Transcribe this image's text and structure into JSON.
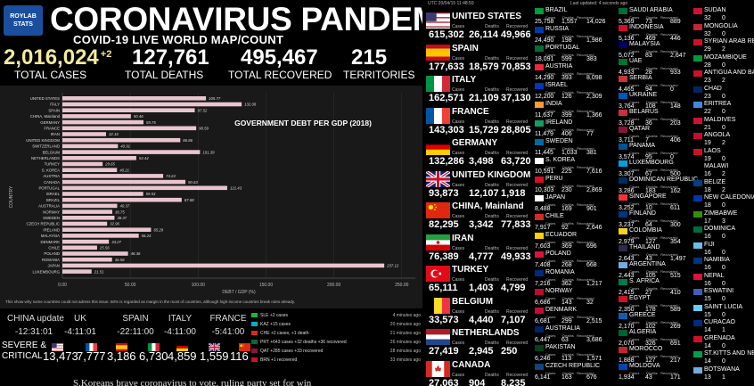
{
  "header": {
    "logo_text": "ROYLAB STATS",
    "title": "CORONAVIRUS PANDEMIC",
    "subtitle": "COVID-19 LIVE WORLD MAP/COUNT"
  },
  "stats": [
    {
      "value": "2,016,024",
      "delta": "+2",
      "label": "TOTAL CASES",
      "color": "#f3ea9c"
    },
    {
      "value": "127,761",
      "delta": "",
      "label": "TOTAL DEATHS",
      "color": "#ffffff"
    },
    {
      "value": "495,467",
      "delta": "",
      "label": "TOTAL RECOVERED",
      "color": "#ffffff"
    },
    {
      "value": "215",
      "delta": "",
      "label": "TERRITORIES",
      "color": "#ffffff"
    }
  ],
  "chart_data": {
    "type": "bar",
    "orientation": "horizontal",
    "title": "GOVERNMENT DEBT PER GDP (2018)",
    "xlabel": "DEBT / GDP (%)",
    "ylabel": "COUNTRY",
    "xlim": [
      0,
      260
    ],
    "xticks": [
      "0.00",
      "50.00",
      "100.00",
      "150.00",
      "200.00",
      "250.00"
    ],
    "xtick_values": [
      0,
      50,
      100,
      150,
      200,
      250
    ],
    "footnote": "This show why some countries could not adress this issue. 60% is regarded as margin in the most of countries, although high-income countries break rules already.",
    "bar_color": "#e9c6cf",
    "categories": [
      "UNITED STATES",
      "ITALY",
      "SPAIN",
      "CHINA, Mainland",
      "GERMANY",
      "FRANCE",
      "IRAN",
      "UNITED KINGDOM",
      "SWITZERLAND",
      "BELGIUM",
      "NETHERLANDS",
      "TURKEY",
      "S. KOREA",
      "AUSTRIA",
      "CANADA",
      "PORTUGAL",
      "ISRAEL",
      "BRAZIL",
      "AUSTRALIA",
      "NORWAY",
      "SWEDEN",
      "CZECH REPUBLIC",
      "IRELAND",
      "MALAYSIA",
      "DENMARK",
      "CHILE",
      "POLAND",
      "ROMANIA",
      "JAPAN",
      "LUXEMBOURG"
    ],
    "values": [
      105.77,
      132.08,
      97.52,
      50.46,
      59.75,
      98.59,
      32.16,
      86.86,
      40.91,
      101.39,
      54.44,
      29.65,
      40.21,
      74.24,
      90.63,
      121.43,
      59.53,
      87.88,
      40.37,
      36.75,
      38.37,
      32.96,
      65.29,
      56.24,
      34.27,
      25.56,
      48.36,
      36.58,
      237.12,
      21.51
    ],
    "value_labels": [
      "105.77",
      "132.08",
      "97.52",
      "50.46",
      "59.75",
      "98.59",
      "32.16",
      "86.86",
      "40.91",
      "101.39",
      "54.44",
      "29.65",
      "40.21",
      "74.24",
      "90.63",
      "121.43",
      "59.53",
      "87.88",
      "40.37",
      "36.75",
      "38.37",
      "32.96",
      "65.29",
      "56.24",
      "34.27",
      "25.56",
      "48.36",
      "36.58",
      "237.12",
      "21.51"
    ]
  },
  "updates": [
    {
      "country": "CHINA update",
      "time": "-12:31:01"
    },
    {
      "country": "UK",
      "time": "-4:11:01"
    },
    {
      "country": "SPAIN",
      "time": "-22:11:00"
    },
    {
      "country": "ITALY",
      "time": "-4:11:00"
    },
    {
      "country": "FRANCE",
      "time": "-5:41:00"
    }
  ],
  "log": [
    {
      "text": "SLE +2 cases",
      "ago": "4 minutes ago",
      "flag": "#1eb53a"
    },
    {
      "text": "KAZ +15 cases",
      "ago": "20 minutes ago",
      "flag": "#00afca"
    },
    {
      "text": "CHE +2 cases, +1 death",
      "ago": "21 minutes ago",
      "flag": "#d52b1e"
    },
    {
      "text": "PRT +643 cases +32 deaths +36 recovered",
      "ago": "26 minutes ago",
      "flag": "#046a38"
    },
    {
      "text": "QAT +285 cases +33 recovered",
      "ago": "28 minutes ago",
      "flag": "#8a1538"
    },
    {
      "text": "BRN +1 recovered",
      "ago": "33 minutes ago",
      "flag": "#ce1126"
    }
  ],
  "severe": {
    "label_line1": "SEVERE &",
    "label_line2": "CRITICAL",
    "values": [
      {
        "num": "13,473",
        "flag": "us"
      },
      {
        "num": "7,777",
        "flag": "fr"
      },
      {
        "num": "3,186",
        "flag": "es"
      },
      {
        "num": "6,730",
        "flag": "it"
      },
      {
        "num": "4,859",
        "flag": "de"
      },
      {
        "num": "1,559",
        "flag": "gb"
      },
      {
        "num": "116",
        "flag": "cn"
      }
    ]
  },
  "ticker": "S.Koreans brave coronavirus to vote, ruling party set for win",
  "middle": {
    "utc": "UTC 20/04/15 11:48:59",
    "labels": {
      "cases": "Cases",
      "deaths": "Deaths",
      "recovered": "Recovered"
    },
    "rows": [
      {
        "name": "UNITED STATES",
        "cases": "615,302",
        "deaths": "26,114",
        "recovered": "49,966",
        "flag": "us"
      },
      {
        "name": "SPAIN",
        "cases": "177,633",
        "deaths": "18,579",
        "recovered": "70,853",
        "flag": "es"
      },
      {
        "name": "ITALY",
        "cases": "162,571",
        "deaths": "21,109",
        "recovered": "37,130",
        "flag": "it"
      },
      {
        "name": "FRANCE",
        "cases": "143,303",
        "deaths": "15,729",
        "recovered": "28,805",
        "flag": "fr"
      },
      {
        "name": "GERMANY",
        "cases": "132,286",
        "deaths": "3,498",
        "recovered": "63,720",
        "flag": "de"
      },
      {
        "name": "UNITED KINGDOM",
        "cases": "93,873",
        "deaths": "12,107",
        "recovered": "1,918",
        "flag": "gb"
      },
      {
        "name": "CHINA, Mainland",
        "cases": "82,295",
        "deaths": "3,342",
        "recovered": "77,833",
        "flag": "cn"
      },
      {
        "name": "IRAN",
        "cases": "76,389",
        "deaths": "4,777",
        "recovered": "49,933",
        "flag": "ir"
      },
      {
        "name": "TURKEY",
        "cases": "65,111",
        "deaths": "1,403",
        "recovered": "4,799",
        "flag": "tr"
      },
      {
        "name": "BELGIUM",
        "cases": "33,573",
        "deaths": "4,440",
        "recovered": "7,107",
        "flag": "be"
      },
      {
        "name": "NETHERLANDS",
        "cases": "27,419",
        "deaths": "2,945",
        "recovered": "250",
        "flag": "nl"
      },
      {
        "name": "CANADA",
        "cases": "27,063",
        "deaths": "904",
        "recovered": "8,235",
        "flag": "ca"
      }
    ]
  },
  "right_list": {
    "last_updated": "Last updated: 4 seconds ago",
    "labels": {
      "cases": "Cases",
      "deaths": "Deaths",
      "recovered": "Recovered"
    },
    "col1": [
      {
        "name": "BRAZIL",
        "cases": "25,758",
        "deaths": "1,557",
        "recovered": "14,026",
        "flag": "#009c3b"
      },
      {
        "name": "RUSSIA",
        "cases": "24,490",
        "deaths": "198",
        "recovered": "1,986",
        "flag": "#0039a6"
      },
      {
        "name": "PORTUGAL",
        "cases": "18,091",
        "deaths": "599",
        "recovered": "383",
        "flag": "#046a38"
      },
      {
        "name": "AUSTRIA",
        "cases": "14,290",
        "deaths": "393",
        "recovered": "8,098",
        "flag": "#ed2939"
      },
      {
        "name": "ISRAEL",
        "cases": "12,200",
        "deaths": "126",
        "recovered": "2,309",
        "flag": "#0038b8"
      },
      {
        "name": "INDIA",
        "cases": "11,637",
        "deaths": "399",
        "recovered": "1,366",
        "flag": "#ff9933"
      },
      {
        "name": "IRELAND",
        "cases": "11,479",
        "deaths": "406",
        "recovered": "77",
        "flag": "#169b62"
      },
      {
        "name": "SWEDEN",
        "cases": "11,445",
        "deaths": "1,033",
        "recovered": "381",
        "flag": "#006aa7"
      },
      {
        "name": "S. KOREA",
        "cases": "10,591",
        "deaths": "225",
        "recovered": "7,616",
        "flag": "#ffffff"
      },
      {
        "name": "PERU",
        "cases": "10,303",
        "deaths": "230",
        "recovered": "2,869",
        "flag": "#d91023"
      },
      {
        "name": "JAPAN",
        "cases": "8,488",
        "deaths": "169",
        "recovered": "901",
        "flag": "#ffffff"
      },
      {
        "name": "CHILE",
        "cases": "7,917",
        "deaths": "92",
        "recovered": "2,646",
        "flag": "#d52b1e"
      },
      {
        "name": "ECUADOR",
        "cases": "7,603",
        "deaths": "369",
        "recovered": "696",
        "flag": "#ffd100"
      },
      {
        "name": "POLAND",
        "cases": "7,408",
        "deaths": "268",
        "recovered": "668",
        "flag": "#dc143c"
      },
      {
        "name": "ROMANIA",
        "cases": "7,216",
        "deaths": "362",
        "recovered": "1,217",
        "flag": "#002b7f"
      },
      {
        "name": "NORWAY",
        "cases": "6,686",
        "deaths": "143",
        "recovered": "32",
        "flag": "#ba0c2f"
      },
      {
        "name": "DENMARK",
        "cases": "6,681",
        "deaths": "299",
        "recovered": "2,515",
        "flag": "#c60c30"
      },
      {
        "name": "AUSTRALIA",
        "cases": "6,447",
        "deaths": "63",
        "recovered": "3,686",
        "flag": "#012169"
      },
      {
        "name": "PAKISTAN",
        "cases": "6,246",
        "deaths": "113",
        "recovered": "1,571",
        "flag": "#01411c"
      },
      {
        "name": "CZECH REPUBLIC",
        "cases": "6,141",
        "deaths": "163",
        "recovered": "676",
        "flag": "#11457e"
      }
    ],
    "col2": [
      {
        "name": "SAUDI ARABIA",
        "cases": "5,369",
        "deaths": "73",
        "recovered": "889",
        "flag": "#006c35"
      },
      {
        "name": "INDONESIA",
        "cases": "5,136",
        "deaths": "469",
        "recovered": "446",
        "flag": "#ce1126"
      },
      {
        "name": "MALAYSIA",
        "cases": "5,072",
        "deaths": "83",
        "recovered": "2,647",
        "flag": "#010066"
      },
      {
        "name": "UAE",
        "cases": "4,933",
        "deaths": "28",
        "recovered": "933",
        "flag": "#00732f"
      },
      {
        "name": "SERBIA",
        "cases": "4,465",
        "deaths": "94",
        "recovered": "0",
        "flag": "#c6363c"
      },
      {
        "name": "UKRAINE",
        "cases": "3,764",
        "deaths": "108",
        "recovered": "148",
        "flag": "#0057b7"
      },
      {
        "name": "BELARUS",
        "cases": "3,728",
        "deaths": "36",
        "recovered": "203",
        "flag": "#c8313e"
      },
      {
        "name": "QATAR",
        "cases": "3,711",
        "deaths": "7",
        "recovered": "406",
        "flag": "#8a1538"
      },
      {
        "name": "PANAMA",
        "cases": "3,574",
        "deaths": "95",
        "recovered": "0",
        "flag": "#005293"
      },
      {
        "name": "LUXEMBOURG",
        "cases": "3,307",
        "deaths": "67",
        "recovered": "500",
        "flag": "#00a1de"
      },
      {
        "name": "DOMINICAN REPUBLIC",
        "cases": "3,286",
        "deaths": "183",
        "recovered": "162",
        "flag": "#002d62"
      },
      {
        "name": "SINGAPORE",
        "cases": "3,252",
        "deaths": "10",
        "recovered": "611",
        "flag": "#ef3340"
      },
      {
        "name": "FINLAND",
        "cases": "3,237",
        "deaths": "64",
        "recovered": "300",
        "flag": "#003580"
      },
      {
        "name": "COLOMBIA",
        "cases": "2,979",
        "deaths": "127",
        "recovered": "354",
        "flag": "#fcd116"
      },
      {
        "name": "THAILAND",
        "cases": "2,643",
        "deaths": "43",
        "recovered": "1,497",
        "flag": "#2d2a4a"
      },
      {
        "name": "ARGENTINA",
        "cases": "2,443",
        "deaths": "105",
        "recovered": "515",
        "flag": "#75aadb"
      },
      {
        "name": "S. AFRICA",
        "cases": "2,415",
        "deaths": "27",
        "recovered": "410",
        "flag": "#007a4d"
      },
      {
        "name": "EGYPT",
        "cases": "2,350",
        "deaths": "178",
        "recovered": "589",
        "flag": "#ce1126"
      },
      {
        "name": "GREECE",
        "cases": "2,170",
        "deaths": "102",
        "recovered": "269",
        "flag": "#0d5eaf"
      },
      {
        "name": "ALGERIA",
        "cases": "2,070",
        "deaths": "326",
        "recovered": "691",
        "flag": "#006233"
      },
      {
        "name": "MOROCCO",
        "cases": "1,888",
        "deaths": "127",
        "recovered": "217",
        "flag": "#c1272d"
      },
      {
        "name": "MOLDOVA",
        "cases": "1,934",
        "deaths": "43",
        "recovered": "171",
        "flag": "#0046ae"
      }
    ],
    "col3": [
      {
        "name": "SUDAN",
        "v1": "32",
        "v2": "0",
        "flag": "#d21034"
      },
      {
        "name": "MONGOLIA",
        "v1": "32",
        "v2": "0",
        "flag": "#c4272f"
      },
      {
        "name": "SYRIAN ARAB REPUBLIC",
        "v1": "29",
        "v2": "2",
        "flag": "#ce1126"
      },
      {
        "name": "MOZAMBIQUE",
        "v1": "28",
        "v2": "0",
        "flag": "#009739"
      },
      {
        "name": "ANTIGUA AND BARBUDA",
        "v1": "23",
        "v2": "2",
        "flag": "#ce1126"
      },
      {
        "name": "CHAD",
        "v1": "23",
        "v2": "0",
        "flag": "#002664"
      },
      {
        "name": "ERITREA",
        "v1": "22",
        "v2": "0",
        "flag": "#4189dd"
      },
      {
        "name": "MALDIVES",
        "v1": "21",
        "v2": "0",
        "flag": "#d21034"
      },
      {
        "name": "ANGOLA",
        "v1": "19",
        "v2": "2",
        "flag": "#cc092f"
      },
      {
        "name": "LAOS",
        "v1": "19",
        "v2": "0",
        "flag": "#ce1126"
      },
      {
        "name": "MALAWI",
        "v1": "16",
        "v2": "2",
        "flag": "#000000"
      },
      {
        "name": "BELIZE",
        "v1": "18",
        "v2": "2",
        "flag": "#003f87"
      },
      {
        "name": "NEW CALEDONIA",
        "v1": "18",
        "v2": "0",
        "flag": "#0035ad"
      },
      {
        "name": "ZIMBABWE",
        "v1": "17",
        "v2": "3",
        "flag": "#319208"
      },
      {
        "name": "DOMINICA",
        "v1": "16",
        "v2": "0",
        "flag": "#006b3f"
      },
      {
        "name": "FIJI",
        "v1": "16",
        "v2": "0",
        "flag": "#68bfe5"
      },
      {
        "name": "NAMIBIA",
        "v1": "16",
        "v2": "0",
        "flag": "#003580"
      },
      {
        "name": "NEPAL",
        "v1": "16",
        "v2": "0",
        "flag": "#dc143c"
      },
      {
        "name": "ESWATINI",
        "v1": "15",
        "v2": "0",
        "flag": "#3e5eb9"
      },
      {
        "name": "SAINT LUCIA",
        "v1": "15",
        "v2": "0",
        "flag": "#66ccff"
      },
      {
        "name": "CURACAO",
        "v1": "14",
        "v2": "1",
        "flag": "#002b7f"
      },
      {
        "name": "GRENADA",
        "v1": "14",
        "v2": "0",
        "flag": "#ce1126"
      },
      {
        "name": "ST.KITTS AND NEVIS",
        "v1": "14",
        "v2": "0",
        "flag": "#009e49"
      },
      {
        "name": "BOTSWANA",
        "v1": "13",
        "v2": "1",
        "flag": "#75aadb"
      }
    ]
  }
}
